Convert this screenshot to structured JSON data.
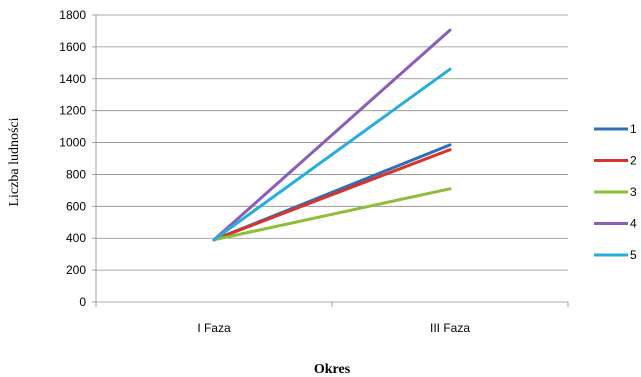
{
  "chart_data": {
    "type": "line",
    "title": "",
    "xlabel": "Okres",
    "ylabel": "Liczba ludności",
    "categories": [
      "I Faza",
      "III Faza"
    ],
    "ylim": [
      0,
      1800
    ],
    "yticks": [
      0,
      200,
      400,
      600,
      800,
      1000,
      1200,
      1400,
      1600,
      1800
    ],
    "grid": "horizontal",
    "legend_position": "right",
    "series": [
      {
        "name": "1",
        "color": "#2E6FB6",
        "values": [
          390,
          985
        ]
      },
      {
        "name": "2",
        "color": "#D9342B",
        "values": [
          390,
          955
        ]
      },
      {
        "name": "3",
        "color": "#8DBE3A",
        "values": [
          390,
          710
        ]
      },
      {
        "name": "4",
        "color": "#8B5CB8",
        "values": [
          390,
          1705
        ]
      },
      {
        "name": "5",
        "color": "#25AEDB",
        "values": [
          390,
          1460
        ]
      }
    ]
  }
}
